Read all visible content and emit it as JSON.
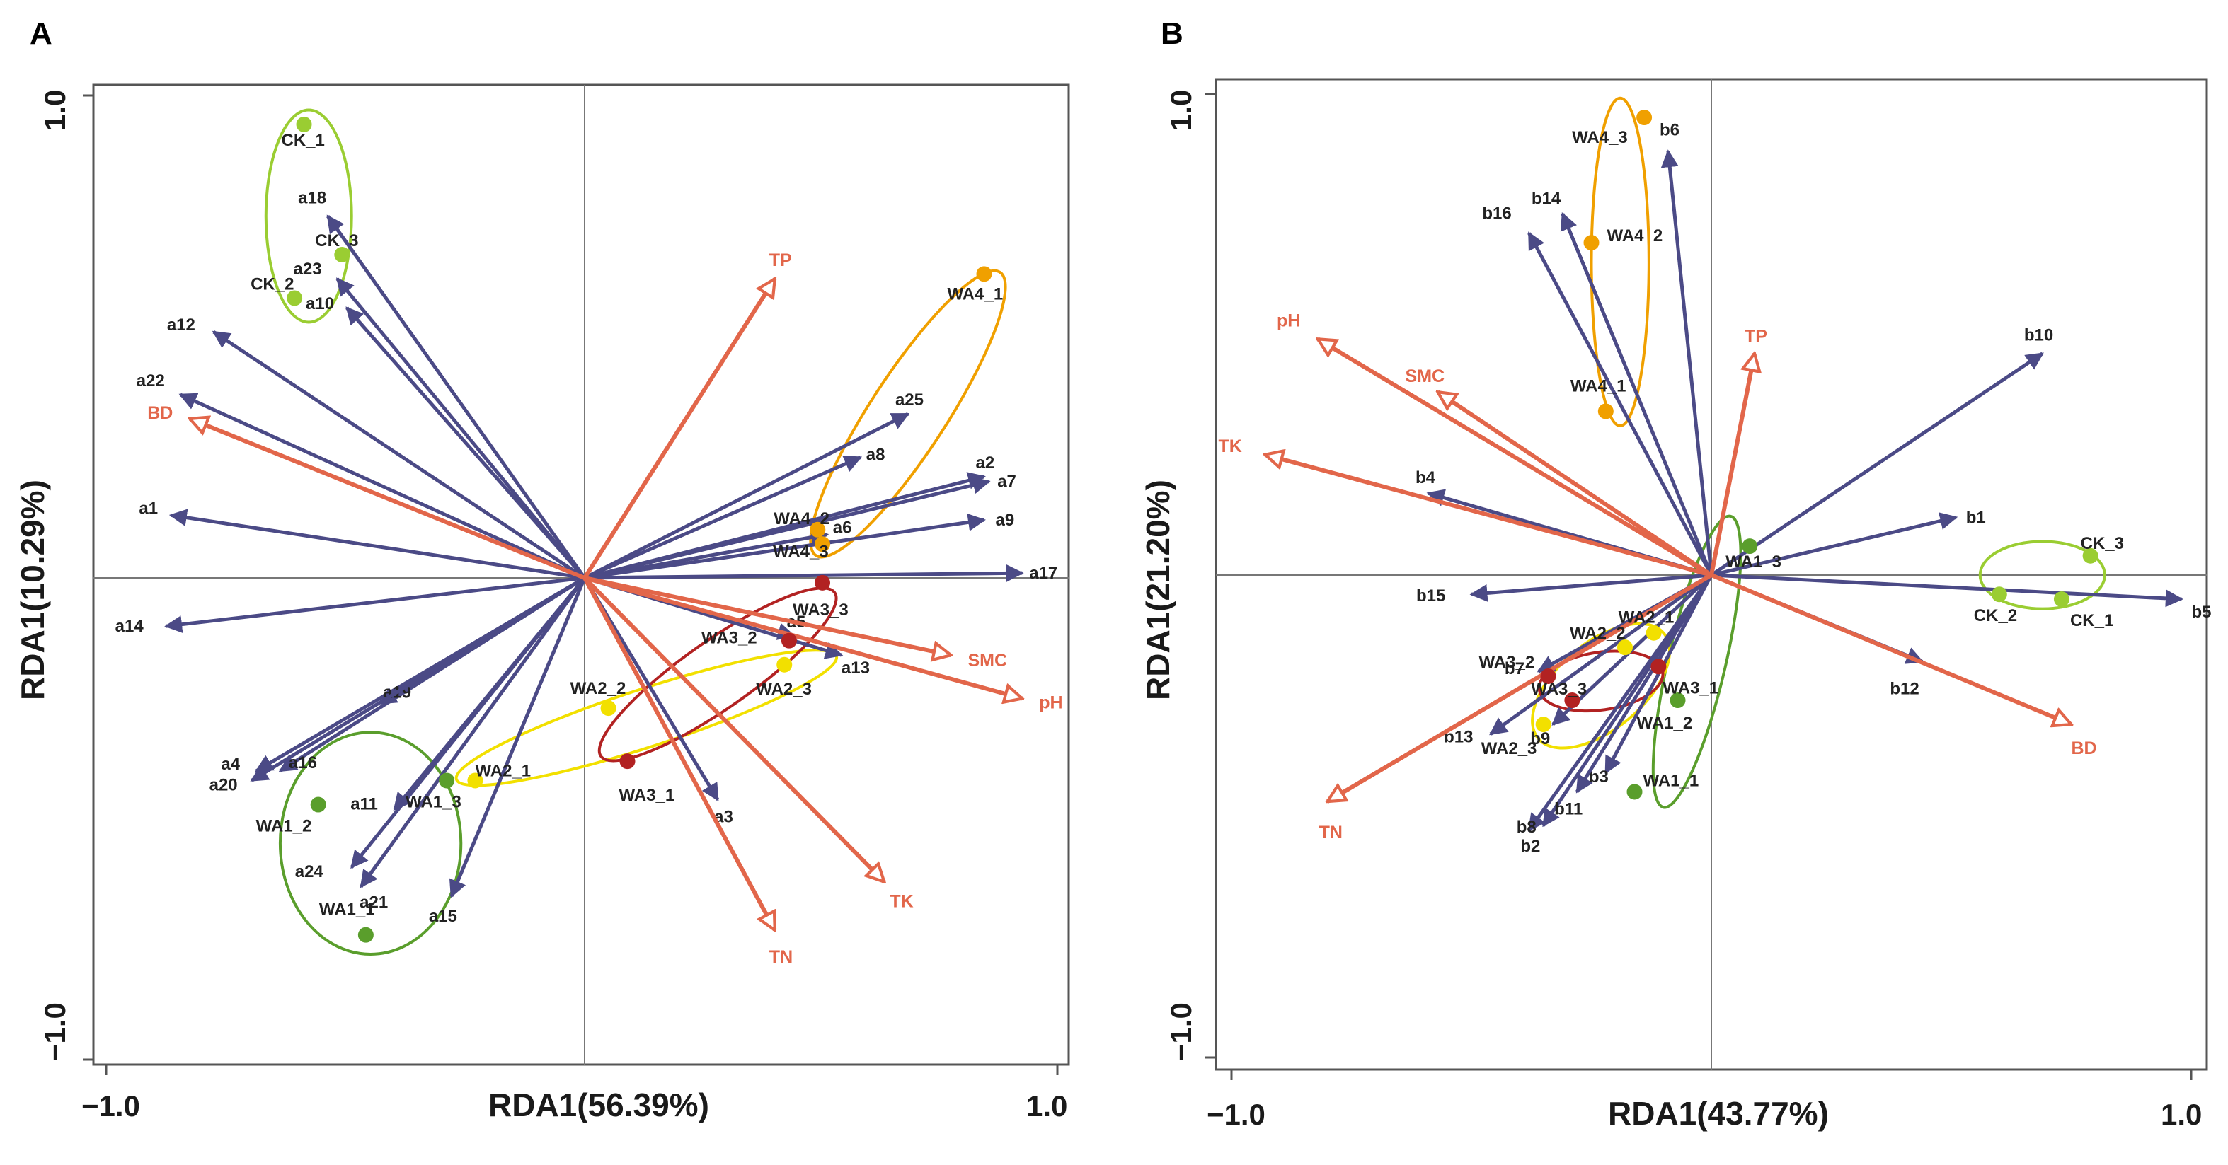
{
  "colors": {
    "species_arrow": "#4b4a86",
    "env_arrow": "#e2664a",
    "CK": "#9acd32",
    "WA1": "#5a9e2c",
    "WA2": "#f2e000",
    "WA3": "#b22222",
    "WA4": "#f0a000"
  },
  "chart_data": [
    {
      "panel": "A",
      "type": "scatter",
      "xlabel": "RDA1(56.39%)",
      "ylabel": "RDA1(10.29%)",
      "xlim": [
        -1.0,
        1.0
      ],
      "ylim": [
        -1.0,
        1.0
      ],
      "xticks": [
        "−1.0",
        "1.0"
      ],
      "yticks": [
        "1.0",
        "−1.0"
      ],
      "species": [
        {
          "name": "a1",
          "x": -0.87,
          "y": 0.13
        },
        {
          "name": "a2",
          "x": 0.84,
          "y": 0.21
        },
        {
          "name": "a3",
          "x": 0.28,
          "y": -0.46
        },
        {
          "name": "a4",
          "x": -0.69,
          "y": -0.4
        },
        {
          "name": "a5",
          "x": 0.44,
          "y": -0.12
        },
        {
          "name": "a6",
          "x": 0.51,
          "y": 0.09
        },
        {
          "name": "a7",
          "x": 0.85,
          "y": 0.2
        },
        {
          "name": "a8",
          "x": 0.58,
          "y": 0.25
        },
        {
          "name": "a9",
          "x": 0.84,
          "y": 0.12
        },
        {
          "name": "a10",
          "x": -0.5,
          "y": 0.56
        },
        {
          "name": "a11",
          "x": -0.4,
          "y": -0.48
        },
        {
          "name": "a12",
          "x": -0.78,
          "y": 0.51
        },
        {
          "name": "a13",
          "x": 0.54,
          "y": -0.16
        },
        {
          "name": "a14",
          "x": -0.88,
          "y": -0.1
        },
        {
          "name": "a15",
          "x": -0.28,
          "y": -0.66
        },
        {
          "name": "a16",
          "x": -0.64,
          "y": -0.4
        },
        {
          "name": "a17",
          "x": 0.92,
          "y": 0.01
        },
        {
          "name": "a18",
          "x": -0.54,
          "y": 0.75
        },
        {
          "name": "a19",
          "x": -0.43,
          "y": -0.26
        },
        {
          "name": "a20",
          "x": -0.7,
          "y": -0.42
        },
        {
          "name": "a21",
          "x": -0.47,
          "y": -0.64
        },
        {
          "name": "a22",
          "x": -0.85,
          "y": 0.38
        },
        {
          "name": "a23",
          "x": -0.52,
          "y": 0.62
        },
        {
          "name": "a24",
          "x": -0.49,
          "y": -0.6
        },
        {
          "name": "a25",
          "x": 0.68,
          "y": 0.34
        }
      ],
      "environment": [
        {
          "name": "BD",
          "x": -0.83,
          "y": 0.33
        },
        {
          "name": "TP",
          "x": 0.4,
          "y": 0.62
        },
        {
          "name": "SMC",
          "x": 0.77,
          "y": -0.16
        },
        {
          "name": "pH",
          "x": 0.92,
          "y": -0.25
        },
        {
          "name": "TK",
          "x": 0.63,
          "y": -0.63
        },
        {
          "name": "TN",
          "x": 0.4,
          "y": -0.73
        }
      ],
      "sites": [
        {
          "name": "CK_1",
          "group": "CK",
          "x": -0.59,
          "y": 0.94
        },
        {
          "name": "CK_2",
          "group": "CK",
          "x": -0.61,
          "y": 0.58
        },
        {
          "name": "CK_3",
          "group": "CK",
          "x": -0.51,
          "y": 0.67
        },
        {
          "name": "WA1_1",
          "group": "WA1",
          "x": -0.46,
          "y": -0.74
        },
        {
          "name": "WA1_2",
          "group": "WA1",
          "x": -0.56,
          "y": -0.47
        },
        {
          "name": "WA1_3",
          "group": "WA1",
          "x": -0.29,
          "y": -0.42
        },
        {
          "name": "WA2_1",
          "group": "WA2",
          "x": -0.23,
          "y": -0.42
        },
        {
          "name": "WA2_2",
          "group": "WA2",
          "x": 0.05,
          "y": -0.27
        },
        {
          "name": "WA2_3",
          "group": "WA2",
          "x": 0.42,
          "y": -0.18
        },
        {
          "name": "WA3_1",
          "group": "WA3",
          "x": 0.09,
          "y": -0.38
        },
        {
          "name": "WA3_2",
          "group": "WA3",
          "x": 0.43,
          "y": -0.13
        },
        {
          "name": "WA3_3",
          "group": "WA3",
          "x": 0.5,
          "y": -0.01
        },
        {
          "name": "WA4_1",
          "group": "WA4",
          "x": 0.84,
          "y": 0.63
        },
        {
          "name": "WA4_2",
          "group": "WA4",
          "x": 0.49,
          "y": 0.1
        },
        {
          "name": "WA4_3",
          "group": "WA4",
          "x": 0.5,
          "y": 0.07
        }
      ]
    },
    {
      "panel": "B",
      "type": "scatter",
      "xlabel": "RDA1(43.77%)",
      "ylabel": "RDA1(21.20%)",
      "xlim": [
        -1.0,
        1.0
      ],
      "ylim": [
        -1.0,
        1.0
      ],
      "xticks": [
        "−1.0",
        "1.0"
      ],
      "yticks": [
        "1.0",
        "−1.0"
      ],
      "species": [
        {
          "name": "b1",
          "x": 0.51,
          "y": 0.12
        },
        {
          "name": "b2",
          "x": -0.38,
          "y": -0.53
        },
        {
          "name": "b3",
          "x": -0.22,
          "y": -0.41
        },
        {
          "name": "b4",
          "x": -0.59,
          "y": 0.17
        },
        {
          "name": "b5",
          "x": 0.98,
          "y": -0.05
        },
        {
          "name": "b6",
          "x": -0.09,
          "y": 0.88
        },
        {
          "name": "b7",
          "x": -0.36,
          "y": -0.2
        },
        {
          "name": "b8",
          "x": -0.35,
          "y": -0.52
        },
        {
          "name": "b9",
          "x": -0.33,
          "y": -0.31
        },
        {
          "name": "b10",
          "x": 0.69,
          "y": 0.46
        },
        {
          "name": "b11",
          "x": -0.28,
          "y": -0.45
        },
        {
          "name": "b12",
          "x": 0.44,
          "y": -0.18
        },
        {
          "name": "b13",
          "x": -0.46,
          "y": -0.33
        },
        {
          "name": "b14",
          "x": -0.31,
          "y": 0.75
        },
        {
          "name": "b15",
          "x": -0.5,
          "y": -0.04
        },
        {
          "name": "b16",
          "x": -0.38,
          "y": 0.71
        }
      ],
      "environment": [
        {
          "name": "pH",
          "x": -0.82,
          "y": 0.49
        },
        {
          "name": "SMC",
          "x": -0.57,
          "y": 0.38
        },
        {
          "name": "TP",
          "x": 0.09,
          "y": 0.46
        },
        {
          "name": "TK",
          "x": -0.93,
          "y": 0.25
        },
        {
          "name": "BD",
          "x": 0.75,
          "y": -0.31
        },
        {
          "name": "TN",
          "x": -0.8,
          "y": -0.47
        }
      ],
      "sites": [
        {
          "name": "CK_1",
          "group": "CK",
          "x": 0.73,
          "y": -0.05
        },
        {
          "name": "CK_2",
          "group": "CK",
          "x": 0.6,
          "y": -0.04
        },
        {
          "name": "CK_3",
          "group": "CK",
          "x": 0.79,
          "y": 0.04
        },
        {
          "name": "WA1_1",
          "group": "WA1",
          "x": -0.16,
          "y": -0.45
        },
        {
          "name": "WA1_2",
          "group": "WA1",
          "x": -0.07,
          "y": -0.26
        },
        {
          "name": "WA1_3",
          "group": "WA1",
          "x": 0.08,
          "y": 0.06
        },
        {
          "name": "WA2_1",
          "group": "WA2",
          "x": -0.12,
          "y": -0.12
        },
        {
          "name": "WA2_2",
          "group": "WA2",
          "x": -0.18,
          "y": -0.15
        },
        {
          "name": "WA2_3",
          "group": "WA2",
          "x": -0.35,
          "y": -0.31
        },
        {
          "name": "WA3_1",
          "group": "WA3",
          "x": -0.11,
          "y": -0.19
        },
        {
          "name": "WA3_2",
          "group": "WA3",
          "x": -0.34,
          "y": -0.21
        },
        {
          "name": "WA3_3",
          "group": "WA3",
          "x": -0.29,
          "y": -0.26
        },
        {
          "name": "WA4_1",
          "group": "WA4",
          "x": -0.22,
          "y": 0.34
        },
        {
          "name": "WA4_2",
          "group": "WA4",
          "x": -0.25,
          "y": 0.69
        },
        {
          "name": "WA4_3",
          "group": "WA4",
          "x": -0.14,
          "y": 0.95
        }
      ]
    }
  ]
}
